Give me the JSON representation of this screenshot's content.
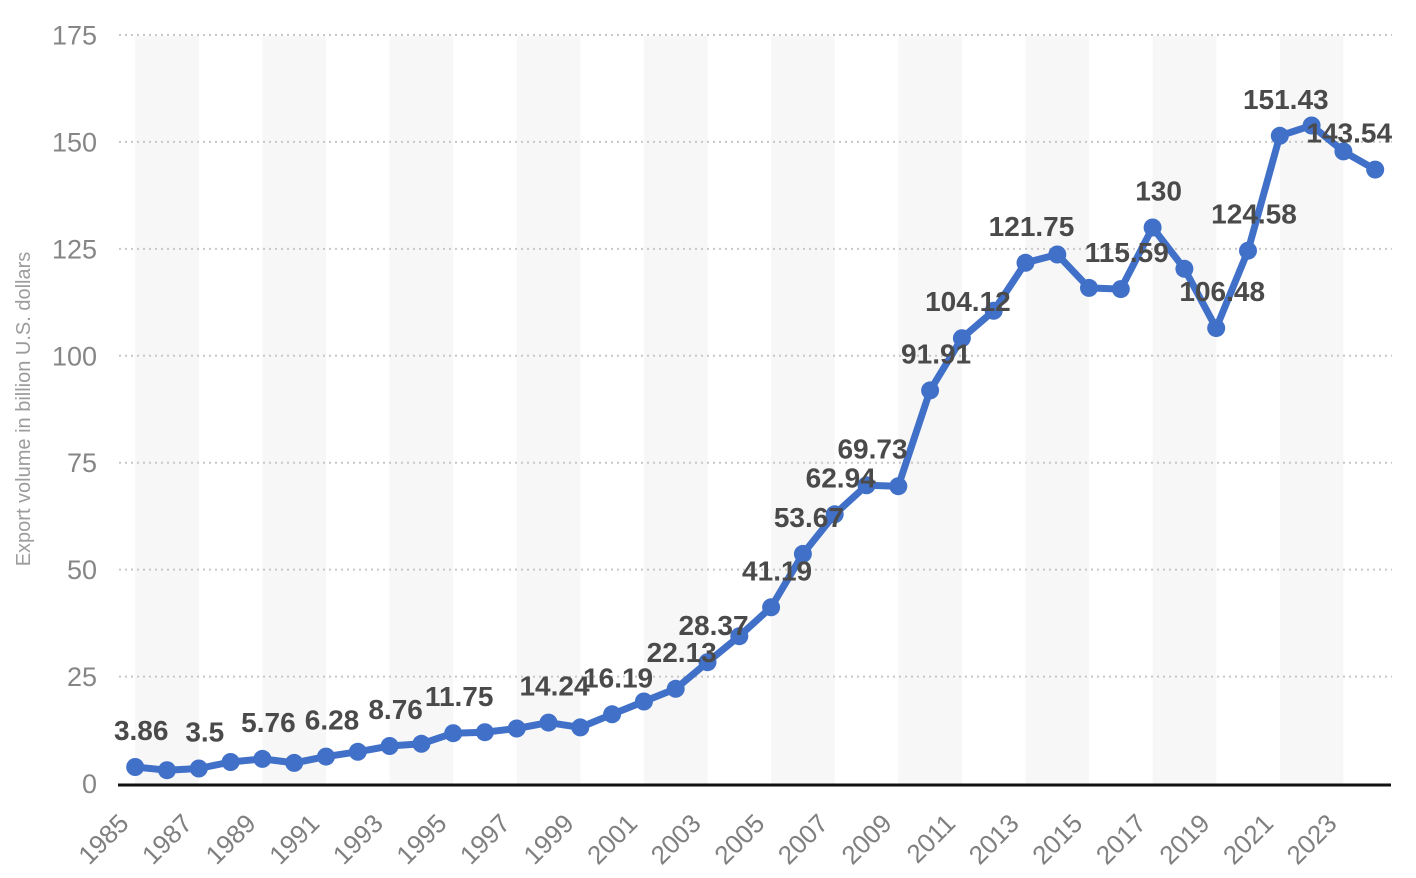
{
  "chart_data": {
    "type": "line",
    "title": "",
    "xlabel": "",
    "ylabel": "Export volume in billion U.S. dollars",
    "ylim": [
      0,
      175
    ],
    "y_tick_interval": 25,
    "y_tick_labels": [
      "0",
      "25",
      "50",
      "75",
      "100",
      "125",
      "150",
      "175"
    ],
    "x_tick_labels": [
      "1985",
      "1987",
      "1989",
      "1991",
      "1993",
      "1995",
      "1997",
      "1999",
      "2001",
      "2003",
      "2005",
      "2007",
      "2009",
      "2011",
      "2013",
      "2015",
      "2017",
      "2019",
      "2021",
      "2023"
    ],
    "grid": "horizontal-dotted",
    "background_stripes": "alternating 2-year vertical bands starting 1985",
    "legend_position": "none",
    "series": [
      {
        "name": "Export volume in billion U.S. dollars",
        "points": [
          {
            "year": 1985,
            "value": 3.86,
            "label": "3.86"
          },
          {
            "year": 1986,
            "value": 3.11,
            "label": null
          },
          {
            "year": 1987,
            "value": 3.5,
            "label": "3.5"
          },
          {
            "year": 1988,
            "value": 5.02,
            "label": null
          },
          {
            "year": 1989,
            "value": 5.76,
            "label": "5.76"
          },
          {
            "year": 1990,
            "value": 4.81,
            "label": null
          },
          {
            "year": 1991,
            "value": 6.28,
            "label": "6.28"
          },
          {
            "year": 1992,
            "value": 7.42,
            "label": null
          },
          {
            "year": 1993,
            "value": 8.76,
            "label": "8.76"
          },
          {
            "year": 1994,
            "value": 9.28,
            "label": null
          },
          {
            "year": 1995,
            "value": 11.75,
            "label": "11.75"
          },
          {
            "year": 1996,
            "value": 11.99,
            "label": null
          },
          {
            "year": 1997,
            "value": 12.86,
            "label": null
          },
          {
            "year": 1998,
            "value": 14.24,
            "label": "14.24"
          },
          {
            "year": 1999,
            "value": 13.11,
            "label": null
          },
          {
            "year": 2000,
            "value": 16.19,
            "label": "16.19"
          },
          {
            "year": 2001,
            "value": 19.18,
            "label": null
          },
          {
            "year": 2002,
            "value": 22.13,
            "label": "22.13"
          },
          {
            "year": 2003,
            "value": 28.37,
            "label": "28.37"
          },
          {
            "year": 2004,
            "value": 34.43,
            "label": null
          },
          {
            "year": 2005,
            "value": 41.19,
            "label": "41.19"
          },
          {
            "year": 2006,
            "value": 53.67,
            "label": "53.67"
          },
          {
            "year": 2007,
            "value": 62.94,
            "label": "62.94"
          },
          {
            "year": 2008,
            "value": 69.73,
            "label": "69.73"
          },
          {
            "year": 2009,
            "value": 69.5,
            "label": null
          },
          {
            "year": 2010,
            "value": 91.91,
            "label": "91.91"
          },
          {
            "year": 2011,
            "value": 104.12,
            "label": "104.12"
          },
          {
            "year": 2012,
            "value": 110.52,
            "label": null
          },
          {
            "year": 2013,
            "value": 121.75,
            "label": "121.75"
          },
          {
            "year": 2014,
            "value": 123.68,
            "label": null
          },
          {
            "year": 2015,
            "value": 115.87,
            "label": null
          },
          {
            "year": 2016,
            "value": 115.59,
            "label": "115.59"
          },
          {
            "year": 2017,
            "value": 130,
            "label": "130"
          },
          {
            "year": 2018,
            "value": 120.34,
            "label": null
          },
          {
            "year": 2019,
            "value": 106.48,
            "label": "106.48"
          },
          {
            "year": 2020,
            "value": 124.58,
            "label": "124.58"
          },
          {
            "year": 2021,
            "value": 151.43,
            "label": "151.43"
          },
          {
            "year": 2022,
            "value": 153.84,
            "label": null
          },
          {
            "year": 2023,
            "value": 147.78,
            "label": null
          },
          {
            "year": 2024,
            "value": 143.54,
            "label": "143.54",
            "label_dx": -26
          }
        ]
      }
    ],
    "colors": {
      "line": "#4170C8",
      "marker": "#4170C8",
      "stripe": "#f7f7f7",
      "gridline": "#c7c7c7",
      "axis_line": "#111111",
      "data_label": "#4a4a4a",
      "tick_label": "#868686",
      "axis_title": "#9c9c9c",
      "background": "#ffffff"
    }
  }
}
